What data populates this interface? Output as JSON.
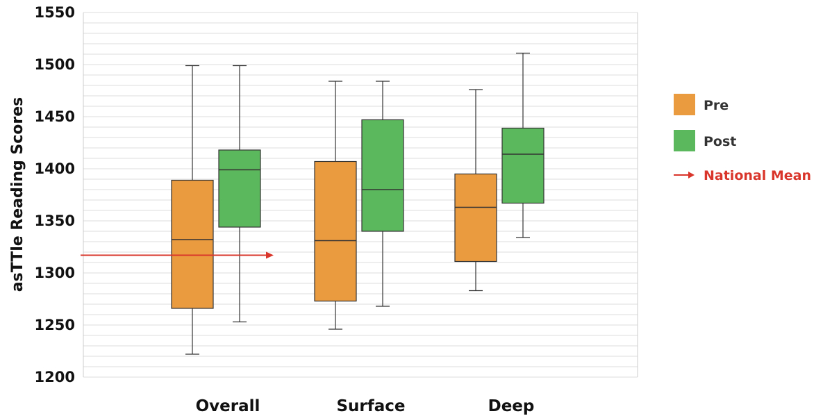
{
  "chart_data": {
    "type": "box",
    "ylabel": "asTTle Reading Scores",
    "xlabel": "",
    "ylim": [
      1200,
      1550
    ],
    "yticks": [
      1200,
      1250,
      1300,
      1350,
      1400,
      1450,
      1500,
      1550
    ],
    "minor_grid_step": 10,
    "categories": [
      "Overall",
      "Surface",
      "Deep"
    ],
    "legend_position": "right",
    "series": [
      {
        "name": "Pre",
        "color": "#ea9a3f",
        "boxes": [
          {
            "min": 1222,
            "q1": 1266,
            "median": 1332,
            "q3": 1389,
            "max": 1499
          },
          {
            "min": 1246,
            "q1": 1273,
            "median": 1331,
            "q3": 1407,
            "max": 1484
          },
          {
            "min": 1283,
            "q1": 1311,
            "median": 1363,
            "q3": 1395,
            "max": 1476
          }
        ]
      },
      {
        "name": "Post",
        "color": "#5cb85c",
        "boxes": [
          {
            "min": 1253,
            "q1": 1344,
            "median": 1399,
            "q3": 1418,
            "max": 1499
          },
          {
            "min": 1268,
            "q1": 1340,
            "median": 1380,
            "q3": 1447,
            "max": 1484
          },
          {
            "min": 1334,
            "q1": 1367,
            "median": 1414,
            "q3": 1439,
            "max": 1511
          }
        ]
      }
    ],
    "reference_line": {
      "name": "National Mean",
      "value": 1317,
      "color": "#d9352a"
    }
  }
}
